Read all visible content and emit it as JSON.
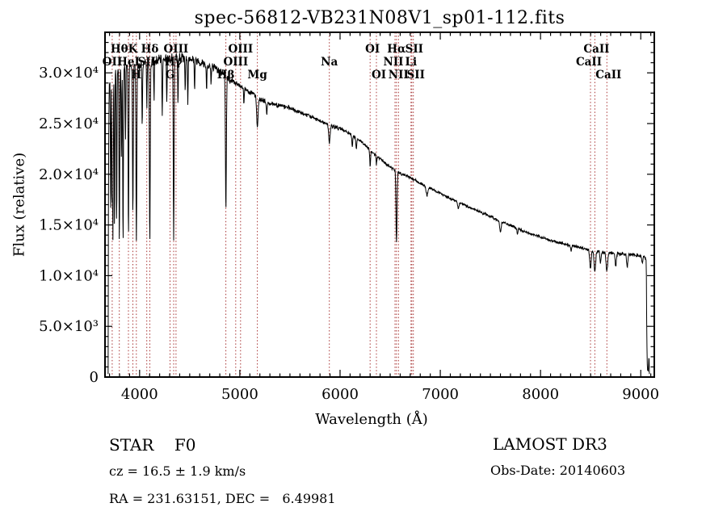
{
  "page": {
    "background": "#ffffff"
  },
  "header": {
    "title": "spec-56812-VB231N08V1_sp01-112.fits"
  },
  "annotations": {
    "class_label": "STAR    F0",
    "survey": "LAMOST DR3",
    "cz": "cz = 16.5 ± 1.9 km/s",
    "obs_date": "Obs-Date: 20140603",
    "coords": "RA = 231.63151, DEC =   6.49981"
  },
  "chart_data": {
    "type": "line",
    "title": "spec-56812-VB231N08V1_sp01-112.fits",
    "xlabel": "Wavelength (Å)",
    "ylabel": "Flux (relative)",
    "xlim": [
      3655,
      9135
    ],
    "ylim": [
      0,
      34000
    ],
    "grid": false,
    "legend": false,
    "line_color": "#000000",
    "marker_line_color": "#a83434",
    "x_ticks": [
      {
        "value": 4000,
        "label": "4000"
      },
      {
        "value": 5000,
        "label": "5000"
      },
      {
        "value": 6000,
        "label": "6000"
      },
      {
        "value": 7000,
        "label": "7000"
      },
      {
        "value": 8000,
        "label": "8000"
      },
      {
        "value": 9000,
        "label": "9000"
      }
    ],
    "y_ticks": [
      {
        "value": 0,
        "label": "0"
      },
      {
        "value": 5000,
        "label": "5.0×10³"
      },
      {
        "value": 10000,
        "label": "1.0×10⁴"
      },
      {
        "value": 15000,
        "label": "1.5×10⁴"
      },
      {
        "value": 20000,
        "label": "2.0×10⁴"
      },
      {
        "value": 25000,
        "label": "2.5×10⁴"
      },
      {
        "value": 30000,
        "label": "3.0×10⁴"
      }
    ],
    "x_minor_step": 100,
    "y_minor_step": 1000,
    "spectral_lines": [
      {
        "label": "OII",
        "wl": 3727,
        "row": 2
      },
      {
        "label": "Hθ",
        "wl": 3798,
        "row": 1
      },
      {
        "label": "HeI",
        "wl": 3889,
        "row": 2
      },
      {
        "label": "K",
        "wl": 3933,
        "row": 1
      },
      {
        "label": "H",
        "wl": 3968,
        "row": 3
      },
      {
        "label": "SII",
        "wl": 4072,
        "row": 2
      },
      {
        "label": "Hδ",
        "wl": 4102,
        "row": 1
      },
      {
        "label": "G",
        "wl": 4304,
        "row": 3
      },
      {
        "label": "Hγ",
        "wl": 4340,
        "row": 2
      },
      {
        "label": "OIII",
        "wl": 4363,
        "row": 1
      },
      {
        "label": "Hβ",
        "wl": 4861,
        "row": 3
      },
      {
        "label": "OIII",
        "wl": 4959,
        "row": 2
      },
      {
        "label": "OIII",
        "wl": 5007,
        "row": 1
      },
      {
        "label": "Mg",
        "wl": 5175,
        "row": 3
      },
      {
        "label": "Na",
        "wl": 5893,
        "row": 2
      },
      {
        "label": "OI",
        "wl": 6300,
        "row": 1,
        "dx": 3
      },
      {
        "label": "OI",
        "wl": 6363,
        "row": 3,
        "dx": 3
      },
      {
        "label": "NII",
        "wl": 6548,
        "row": 2,
        "dx": -2
      },
      {
        "label": "Hα",
        "wl": 6563,
        "row": 1
      },
      {
        "label": "NII",
        "wl": 6583,
        "row": 3
      },
      {
        "label": "Li",
        "wl": 6708,
        "row": 2
      },
      {
        "label": "SII",
        "wl": 6716,
        "row": 1,
        "dx": 3
      },
      {
        "label": "SII",
        "wl": 6731,
        "row": 3,
        "dx": 3
      },
      {
        "label": "CaII",
        "wl": 8498,
        "row": 2,
        "dx": -2
      },
      {
        "label": "CaII",
        "wl": 8542,
        "row": 1,
        "dx": 2
      },
      {
        "label": "CaII",
        "wl": 8662,
        "row": 3,
        "dx": 2
      }
    ],
    "continuum": [
      [
        3686,
        300
      ],
      [
        3690,
        21000
      ],
      [
        3697,
        28800
      ],
      [
        3710,
        30000
      ],
      [
        3760,
        30300
      ],
      [
        3820,
        30500
      ],
      [
        3900,
        30700
      ],
      [
        4000,
        30800
      ],
      [
        4120,
        31100
      ],
      [
        4250,
        31400
      ],
      [
        4400,
        31600
      ],
      [
        4520,
        31400
      ],
      [
        4620,
        31000
      ],
      [
        4720,
        30600
      ],
      [
        4820,
        30100
      ],
      [
        4900,
        29300
      ],
      [
        5000,
        28700
      ],
      [
        5090,
        28200
      ],
      [
        5200,
        27400
      ],
      [
        5300,
        27000
      ],
      [
        5400,
        26800
      ],
      [
        5500,
        26500
      ],
      [
        5600,
        26100
      ],
      [
        5700,
        25700
      ],
      [
        5820,
        25200
      ],
      [
        5900,
        24800
      ],
      [
        6000,
        24500
      ],
      [
        6100,
        24000
      ],
      [
        6200,
        23300
      ],
      [
        6300,
        22400
      ],
      [
        6400,
        21500
      ],
      [
        6500,
        20700
      ],
      [
        6600,
        20100
      ],
      [
        6700,
        19700
      ],
      [
        6800,
        19100
      ],
      [
        6900,
        18600
      ],
      [
        7000,
        18100
      ],
      [
        7170,
        17300
      ],
      [
        7300,
        16700
      ],
      [
        7440,
        16100
      ],
      [
        7570,
        15500
      ],
      [
        7710,
        14900
      ],
      [
        7850,
        14300
      ],
      [
        7980,
        13900
      ],
      [
        8120,
        13400
      ],
      [
        8250,
        13100
      ],
      [
        8380,
        12800
      ],
      [
        8520,
        12500
      ],
      [
        8640,
        12300
      ],
      [
        8760,
        12200
      ],
      [
        8880,
        12100
      ],
      [
        8980,
        12000
      ],
      [
        9040,
        11900
      ],
      [
        9055,
        11500
      ],
      [
        9060,
        4000
      ],
      [
        9066,
        700
      ],
      [
        9075,
        600
      ],
      [
        9082,
        2300
      ],
      [
        9086,
        300
      ]
    ],
    "absorption_lines": [
      [
        3712,
        15500,
        3
      ],
      [
        3726,
        17500,
        3
      ],
      [
        3734,
        13500,
        3
      ],
      [
        3750,
        14200,
        3
      ],
      [
        3771,
        14800,
        3
      ],
      [
        3798,
        13000,
        3.5
      ],
      [
        3819,
        21500,
        3
      ],
      [
        3835,
        13200,
        3.5
      ],
      [
        3860,
        23500,
        3
      ],
      [
        3889,
        13800,
        3.5
      ],
      [
        3933,
        16200,
        4
      ],
      [
        3968,
        13300,
        4
      ],
      [
        4026,
        24500,
        3
      ],
      [
        4072,
        26500,
        3
      ],
      [
        4102,
        12900,
        4
      ],
      [
        4144,
        27500,
        3
      ],
      [
        4226,
        25500,
        3
      ],
      [
        4271,
        27200,
        3
      ],
      [
        4340,
        13200,
        4
      ],
      [
        4383,
        26500,
        3
      ],
      [
        4455,
        28000,
        3
      ],
      [
        4481,
        27000,
        3
      ],
      [
        4549,
        28200,
        3
      ],
      [
        4668,
        28300,
        3
      ],
      [
        4713,
        28800,
        3
      ],
      [
        4861,
        16300,
        4.5
      ],
      [
        5041,
        26800,
        3
      ],
      [
        5175,
        24600,
        7
      ],
      [
        5269,
        25800,
        4
      ],
      [
        5893,
        23100,
        7
      ],
      [
        6122,
        22800,
        4
      ],
      [
        6162,
        22400,
        4
      ],
      [
        6300,
        20700,
        4
      ],
      [
        6363,
        21000,
        4
      ],
      [
        6563,
        13200,
        5
      ],
      [
        6867,
        17900,
        8
      ],
      [
        7180,
        16700,
        7
      ],
      [
        7600,
        14300,
        7
      ],
      [
        7770,
        14100,
        5
      ],
      [
        8305,
        12400,
        5
      ],
      [
        8498,
        10700,
        7
      ],
      [
        8542,
        10400,
        8
      ],
      [
        8598,
        11200,
        5
      ],
      [
        8662,
        10400,
        8
      ],
      [
        8750,
        10900,
        6
      ],
      [
        8865,
        10900,
        6
      ],
      [
        9015,
        11200,
        5
      ]
    ],
    "noise_segments": [
      [
        3655,
        550
      ],
      [
        4450,
        500
      ],
      [
        4950,
        300
      ],
      [
        5500,
        230
      ],
      [
        6050,
        190
      ],
      [
        6700,
        170
      ],
      [
        7500,
        150
      ],
      [
        8400,
        200
      ],
      [
        9045,
        60
      ]
    ]
  }
}
